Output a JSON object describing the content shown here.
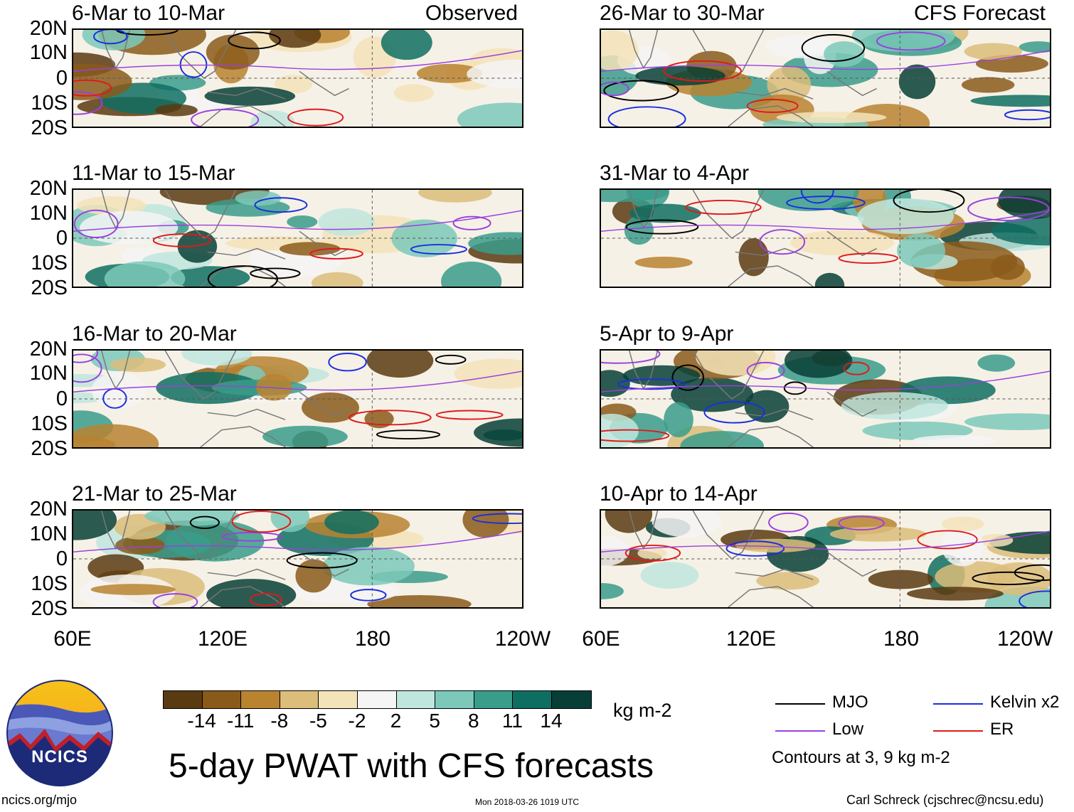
{
  "figure": {
    "title": "5-day PWAT with CFS forecasts",
    "units": "kg m-2",
    "left_column_label": "Observed",
    "right_column_label": "CFS Forecast"
  },
  "panels": [
    {
      "title": "6-Mar to 10-Mar",
      "label": "Observed"
    },
    {
      "title": "11-Mar to 15-Mar",
      "label": ""
    },
    {
      "title": "16-Mar to 20-Mar",
      "label": ""
    },
    {
      "title": "21-Mar to 25-Mar",
      "label": ""
    },
    {
      "title": "26-Mar to 30-Mar",
      "label": "CFS Forecast"
    },
    {
      "title": "31-Mar to 4-Apr",
      "label": ""
    },
    {
      "title": "5-Apr to 9-Apr",
      "label": ""
    },
    {
      "title": "10-Apr to 14-Apr",
      "label": ""
    }
  ],
  "axes": {
    "lat_labels": [
      "20N",
      "10N",
      "0",
      "10S",
      "20S"
    ],
    "lon_labels": [
      "60E",
      "120E",
      "180",
      "120W"
    ]
  },
  "colorbar": {
    "labels": [
      "-14",
      "-11",
      "-8",
      "-5",
      "-2",
      "2",
      "5",
      "8",
      "11",
      "14"
    ],
    "colors": [
      "#5a3a10",
      "#8a5a1a",
      "#b98330",
      "#dcbd7a",
      "#f3e3b8",
      "#f5f5f5",
      "#bfe6dd",
      "#7cc9ba",
      "#3a9c8b",
      "#0f6e62",
      "#073f36"
    ]
  },
  "legend": {
    "items": [
      {
        "label": "MJO",
        "color": "#000000"
      },
      {
        "label": "Low",
        "color": "#9a40e0"
      },
      {
        "label": "Kelvin x2",
        "color": "#1a2ee0"
      },
      {
        "label": "ER",
        "color": "#e01a1a"
      }
    ],
    "contours_note": "Contours at 3, 9 kg m-2"
  },
  "logo": {
    "text": "NCICS"
  },
  "footer": {
    "left": "ncics.org/mjo",
    "center": "Mon 2018-03-26 1019 UTC",
    "right": "Carl Schreck (cjschrec@ncsu.edu)"
  }
}
